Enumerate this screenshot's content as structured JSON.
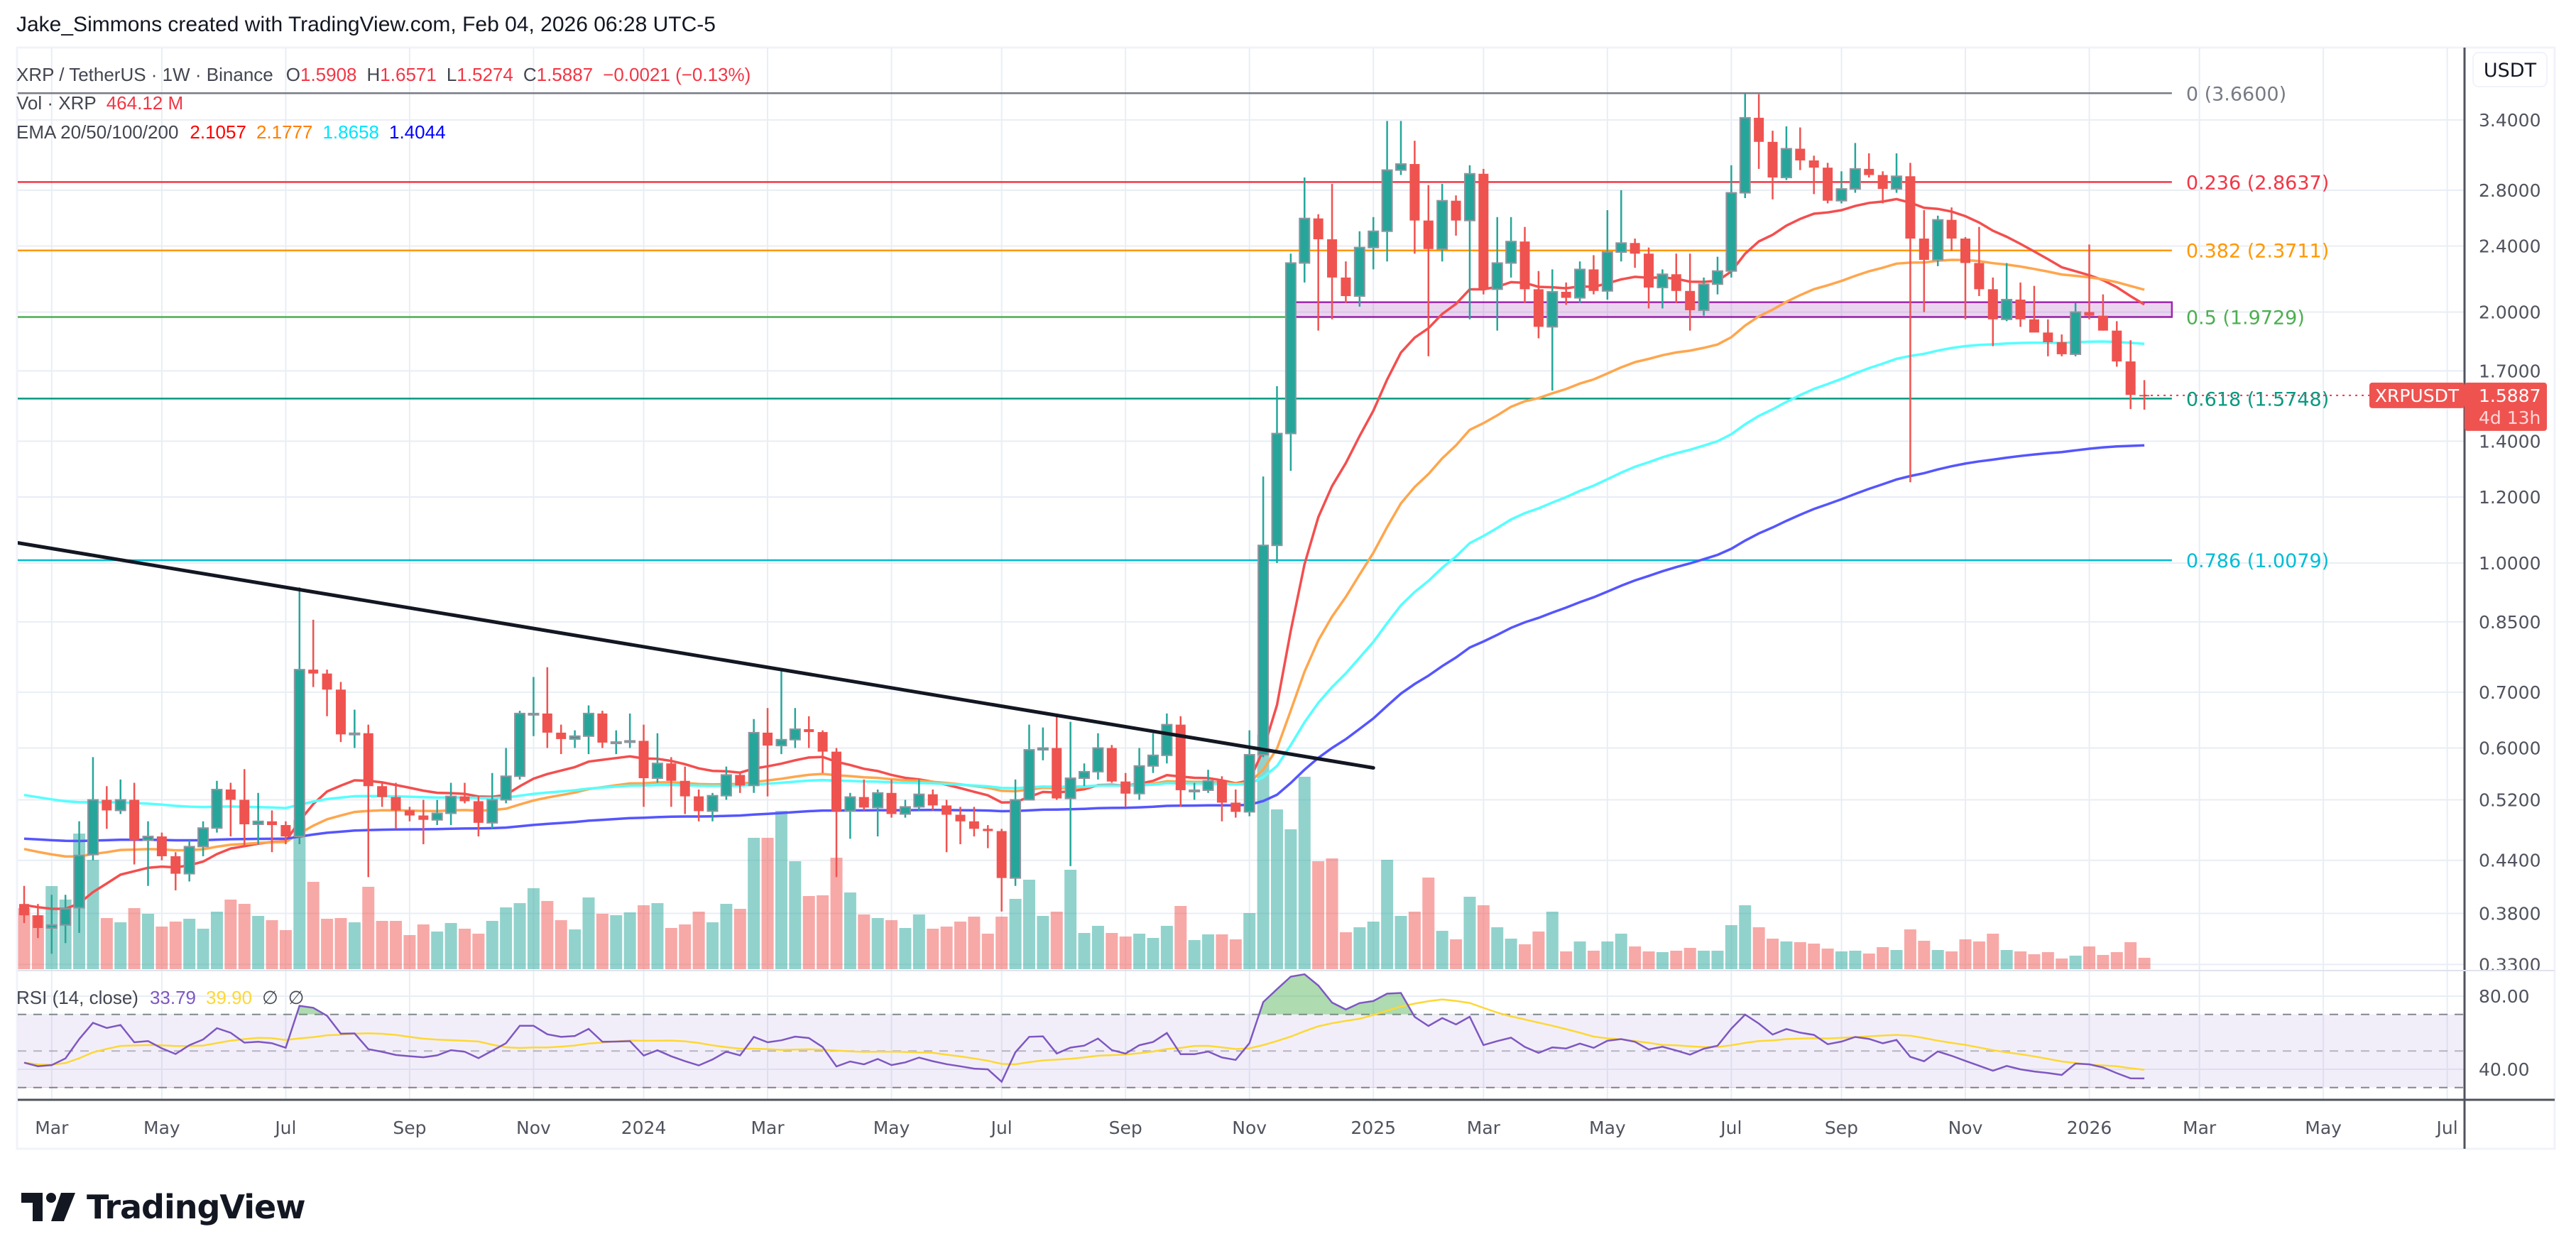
{
  "header": {
    "attribution": "Jake_Simmons created with TradingView.com, Feb 04, 2026 06:28 UTC-5"
  },
  "legend": {
    "symbol": "XRP / TetherUS · 1W · Binance",
    "o_label": "O",
    "o": "1.5908",
    "h_label": "H",
    "h": "1.6571",
    "l_label": "L",
    "l": "1.5274",
    "c_label": "C",
    "c": "1.5887",
    "change": "−0.0021 (−0.13%)"
  },
  "volume_legend": {
    "label": "Vol · XRP",
    "value": "464.12 M"
  },
  "ema_legend": {
    "label": "EMA 20/50/100/200",
    "values": [
      "2.1057",
      "2.1777",
      "1.8658",
      "1.4044"
    ]
  },
  "rsi_legend": {
    "label": "RSI (14, close)",
    "rsi": "33.79",
    "ma": "39.90",
    "na1": "∅",
    "na2": "∅"
  },
  "price_axis": {
    "currency": "USDT",
    "ticks": [
      {
        "label": "3.4000",
        "value": 3.4
      },
      {
        "label": "2.8000",
        "value": 2.8
      },
      {
        "label": "2.4000",
        "value": 2.4
      },
      {
        "label": "2.0000",
        "value": 2.0
      },
      {
        "label": "1.7000",
        "value": 1.7
      },
      {
        "label": "1.4000",
        "value": 1.4
      },
      {
        "label": "1.2000",
        "value": 1.2
      },
      {
        "label": "1.0000",
        "value": 1.0
      },
      {
        "label": "0.8500",
        "value": 0.85
      },
      {
        "label": "0.7000",
        "value": 0.7
      },
      {
        "label": "0.6000",
        "value": 0.6
      },
      {
        "label": "0.5200",
        "value": 0.52
      },
      {
        "label": "0.4400",
        "value": 0.44
      },
      {
        "label": "0.3800",
        "value": 0.38
      },
      {
        "label": "0.3300",
        "value": 0.33
      }
    ]
  },
  "rsi_axis": {
    "ticks": [
      {
        "label": "80.00",
        "value": 80
      },
      {
        "label": "40.00",
        "value": 40
      }
    ]
  },
  "time_axis": {
    "labels": [
      {
        "label": "Mar",
        "month": "2023-03"
      },
      {
        "label": "May",
        "month": "2023-05"
      },
      {
        "label": "Jul",
        "month": "2023-07"
      },
      {
        "label": "Sep",
        "month": "2023-09"
      },
      {
        "label": "Nov",
        "month": "2023-11"
      },
      {
        "label": "2024",
        "month": "2024-01"
      },
      {
        "label": "Mar",
        "month": "2024-03"
      },
      {
        "label": "May",
        "month": "2024-05"
      },
      {
        "label": "Jul",
        "month": "2024-07"
      },
      {
        "label": "Sep",
        "month": "2024-09"
      },
      {
        "label": "Nov",
        "month": "2024-11"
      },
      {
        "label": "2025",
        "month": "2025-01"
      },
      {
        "label": "Mar",
        "month": "2025-03"
      },
      {
        "label": "May",
        "month": "2025-05"
      },
      {
        "label": "Jul",
        "month": "2025-07"
      },
      {
        "label": "Sep",
        "month": "2025-09"
      },
      {
        "label": "Nov",
        "month": "2025-11"
      },
      {
        "label": "2026",
        "month": "2026-01"
      },
      {
        "label": "Mar",
        "month": "2026-03"
      },
      {
        "label": "May",
        "month": "2026-05"
      },
      {
        "label": "Jul",
        "month": "2026-07"
      }
    ]
  },
  "price_tag": {
    "symbol": "XRPUSDT",
    "price": "1.5887",
    "countdown": "4d 13h"
  },
  "brand": "TradingView",
  "colors": {
    "up": "#26a69a",
    "down": "#ef5350",
    "volume_up": "rgba(38,166,154,0.5)",
    "volume_down": "rgba(239,83,80,0.5)",
    "ema20": "#f44e4e",
    "ema50": "#ffa64d",
    "ema100": "#55ffff",
    "ema200": "#5555ff",
    "ema20_legend": "#ff0000",
    "ema50_legend": "#ff8000",
    "ema100_legend": "#00ffff",
    "ema200_legend": "#0000ff",
    "rsi": "#7e57c2",
    "rsi_ma": "#fdd835",
    "trendline": "#131722",
    "zone_fill": "rgba(156,39,176,0.2)",
    "zone_border": "#9c27b0",
    "grid": "#e8eef5"
  },
  "chart_data": {
    "type": "candlestick",
    "symbol": "XRPUSDT",
    "interval": "1W",
    "start_week": "2023-02-20",
    "y_scale": "log",
    "ylim": [
      0.32,
      3.75
    ],
    "x_range": [
      "2023-02-20",
      "2026-07-13"
    ],
    "grid": true,
    "candle_fields": [
      "open",
      "high",
      "low",
      "close",
      "volume_millions"
    ],
    "candles": [
      [
        0.39,
        0.41,
        0.37,
        0.378,
        2494
      ],
      [
        0.378,
        0.39,
        0.355,
        0.365,
        2204
      ],
      [
        0.365,
        0.4,
        0.34,
        0.368,
        3393
      ],
      [
        0.368,
        0.4,
        0.35,
        0.385,
        2842
      ],
      [
        0.386,
        0.49,
        0.36,
        0.446,
        5539
      ],
      [
        0.447,
        0.585,
        0.44,
        0.52,
        4466
      ],
      [
        0.52,
        0.54,
        0.48,
        0.505,
        2088
      ],
      [
        0.505,
        0.55,
        0.5,
        0.52,
        1914
      ],
      [
        0.52,
        0.545,
        0.435,
        0.465,
        2494
      ],
      [
        0.465,
        0.49,
        0.41,
        0.47,
        2262
      ],
      [
        0.47,
        0.475,
        0.44,
        0.445,
        1740
      ],
      [
        0.445,
        0.45,
        0.405,
        0.424,
        1943
      ],
      [
        0.424,
        0.465,
        0.415,
        0.457,
        2059
      ],
      [
        0.457,
        0.49,
        0.445,
        0.481,
        1653
      ],
      [
        0.481,
        0.548,
        0.475,
        0.535,
        2349
      ],
      [
        0.535,
        0.545,
        0.47,
        0.52,
        2842
      ],
      [
        0.52,
        0.566,
        0.456,
        0.486,
        2668
      ],
      [
        0.486,
        0.53,
        0.46,
        0.49,
        2175
      ],
      [
        0.49,
        0.505,
        0.45,
        0.485,
        2001
      ],
      [
        0.485,
        0.49,
        0.46,
        0.47,
        1595
      ],
      [
        0.47,
        0.935,
        0.46,
        0.745,
        6090
      ],
      [
        0.745,
        0.855,
        0.71,
        0.737,
        3567
      ],
      [
        0.737,
        0.745,
        0.655,
        0.705,
        2059
      ],
      [
        0.705,
        0.72,
        0.61,
        0.623,
        2088
      ],
      [
        0.623,
        0.667,
        0.6,
        0.625,
        1914
      ],
      [
        0.625,
        0.64,
        0.42,
        0.54,
        3364
      ],
      [
        0.54,
        0.545,
        0.51,
        0.524,
        1972
      ],
      [
        0.524,
        0.545,
        0.48,
        0.505,
        1972
      ],
      [
        0.505,
        0.51,
        0.49,
        0.498,
        1392
      ],
      [
        0.498,
        0.52,
        0.46,
        0.492,
        1827
      ],
      [
        0.492,
        0.52,
        0.485,
        0.501,
        1537
      ],
      [
        0.501,
        0.545,
        0.485,
        0.525,
        1885
      ],
      [
        0.525,
        0.545,
        0.515,
        0.518,
        1653
      ],
      [
        0.518,
        0.525,
        0.47,
        0.488,
        1450
      ],
      [
        0.488,
        0.56,
        0.48,
        0.52,
        1972
      ],
      [
        0.52,
        0.6,
        0.515,
        0.555,
        2523
      ],
      [
        0.555,
        0.665,
        0.55,
        0.66,
        2697
      ],
      [
        0.66,
        0.73,
        0.62,
        0.66,
        3306
      ],
      [
        0.66,
        0.75,
        0.6,
        0.626,
        2784
      ],
      [
        0.626,
        0.64,
        0.59,
        0.615,
        2001
      ],
      [
        0.615,
        0.63,
        0.6,
        0.62,
        1624
      ],
      [
        0.62,
        0.675,
        0.59,
        0.66,
        2929
      ],
      [
        0.66,
        0.665,
        0.6,
        0.609,
        2262
      ],
      [
        0.609,
        0.63,
        0.59,
        0.61,
        2204
      ],
      [
        0.61,
        0.66,
        0.6,
        0.612,
        2320
      ],
      [
        0.612,
        0.64,
        0.51,
        0.552,
        2610
      ],
      [
        0.552,
        0.625,
        0.545,
        0.575,
        2697
      ],
      [
        0.575,
        0.585,
        0.51,
        0.548,
        1682
      ],
      [
        0.548,
        0.57,
        0.5,
        0.525,
        1827
      ],
      [
        0.525,
        0.535,
        0.49,
        0.504,
        2349
      ],
      [
        0.504,
        0.53,
        0.49,
        0.526,
        1914
      ],
      [
        0.526,
        0.57,
        0.52,
        0.557,
        2668
      ],
      [
        0.557,
        0.56,
        0.53,
        0.541,
        2465
      ],
      [
        0.541,
        0.65,
        0.53,
        0.626,
        5365
      ],
      [
        0.626,
        0.67,
        0.525,
        0.604,
        5365
      ],
      [
        0.604,
        0.744,
        0.59,
        0.614,
        6467
      ],
      [
        0.614,
        0.67,
        0.6,
        0.632,
        4408
      ],
      [
        0.632,
        0.655,
        0.6,
        0.627,
        2987
      ],
      [
        0.627,
        0.63,
        0.56,
        0.594,
        3016
      ],
      [
        0.594,
        0.6,
        0.42,
        0.504,
        4553
      ],
      [
        0.504,
        0.53,
        0.467,
        0.524,
        3132
      ],
      [
        0.524,
        0.55,
        0.505,
        0.509,
        2233
      ],
      [
        0.509,
        0.535,
        0.47,
        0.53,
        2088
      ],
      [
        0.53,
        0.55,
        0.495,
        0.5,
        2001
      ],
      [
        0.5,
        0.52,
        0.495,
        0.51,
        1682
      ],
      [
        0.51,
        0.55,
        0.505,
        0.528,
        2233
      ],
      [
        0.528,
        0.535,
        0.505,
        0.512,
        1653
      ],
      [
        0.512,
        0.52,
        0.45,
        0.499,
        1740
      ],
      [
        0.499,
        0.51,
        0.46,
        0.49,
        1943
      ],
      [
        0.49,
        0.51,
        0.47,
        0.48,
        2146
      ],
      [
        0.48,
        0.485,
        0.455,
        0.477,
        1450
      ],
      [
        0.477,
        0.48,
        0.382,
        0.419,
        2146
      ],
      [
        0.419,
        0.55,
        0.41,
        0.52,
        2871
      ],
      [
        0.52,
        0.64,
        0.52,
        0.597,
        3654
      ],
      [
        0.597,
        0.635,
        0.58,
        0.6,
        2175
      ],
      [
        0.6,
        0.657,
        0.52,
        0.522,
        2349
      ],
      [
        0.522,
        0.645,
        0.433,
        0.552,
        4060
      ],
      [
        0.552,
        0.575,
        0.54,
        0.562,
        1479
      ],
      [
        0.562,
        0.625,
        0.55,
        0.6,
        1769
      ],
      [
        0.6,
        0.605,
        0.545,
        0.547,
        1479
      ],
      [
        0.547,
        0.56,
        0.51,
        0.529,
        1334
      ],
      [
        0.529,
        0.6,
        0.52,
        0.571,
        1450
      ],
      [
        0.571,
        0.625,
        0.56,
        0.588,
        1276
      ],
      [
        0.588,
        0.66,
        0.575,
        0.64,
        1769
      ],
      [
        0.64,
        0.655,
        0.51,
        0.534,
        2581
      ],
      [
        0.534,
        0.545,
        0.52,
        0.534,
        1189
      ],
      [
        0.534,
        0.565,
        0.53,
        0.548,
        1421
      ],
      [
        0.548,
        0.555,
        0.49,
        0.516,
        1421
      ],
      [
        0.516,
        0.535,
        0.495,
        0.503,
        1218
      ],
      [
        0.503,
        0.63,
        0.497,
        0.589,
        2291
      ],
      [
        0.589,
        1.27,
        0.585,
        1.05,
        9570
      ],
      [
        1.05,
        1.63,
        1.0,
        1.43,
        6525
      ],
      [
        1.43,
        2.35,
        1.29,
        2.29,
        5713
      ],
      [
        2.29,
        2.9,
        2.17,
        2.59,
        7859
      ],
      [
        2.59,
        2.62,
        1.9,
        2.445,
        4408
      ],
      [
        2.445,
        2.85,
        1.96,
        2.2,
        4524
      ],
      [
        2.2,
        2.3,
        2.05,
        2.09,
        1508
      ],
      [
        2.09,
        2.5,
        2.03,
        2.39,
        1711
      ],
      [
        2.39,
        2.6,
        2.25,
        2.5,
        1943
      ],
      [
        2.5,
        3.39,
        2.3,
        2.96,
        4466
      ],
      [
        2.96,
        3.39,
        2.92,
        3.01,
        2175
      ],
      [
        3.01,
        3.21,
        2.35,
        2.575,
        2349
      ],
      [
        2.575,
        2.84,
        1.77,
        2.38,
        3741
      ],
      [
        2.38,
        2.85,
        2.3,
        2.72,
        1566
      ],
      [
        2.72,
        2.76,
        2.47,
        2.575,
        1218
      ],
      [
        2.575,
        3.0,
        1.96,
        2.93,
        2958
      ],
      [
        2.93,
        2.97,
        2.1,
        2.13,
        2610
      ],
      [
        2.13,
        2.6,
        1.9,
        2.29,
        1711
      ],
      [
        2.29,
        2.6,
        2.2,
        2.43,
        1247
      ],
      [
        2.43,
        2.53,
        2.05,
        2.13,
        1015
      ],
      [
        2.13,
        2.24,
        1.86,
        1.92,
        1537
      ],
      [
        1.92,
        2.25,
        1.61,
        2.115,
        2349
      ],
      [
        2.115,
        2.17,
        2.04,
        2.08,
        725
      ],
      [
        2.08,
        2.3,
        2.05,
        2.25,
        1131
      ],
      [
        2.25,
        2.34,
        2.1,
        2.12,
        754
      ],
      [
        2.12,
        2.65,
        2.07,
        2.36,
        1131
      ],
      [
        2.36,
        2.8,
        2.3,
        2.42,
        1450
      ],
      [
        2.42,
        2.45,
        2.26,
        2.35,
        928
      ],
      [
        2.35,
        2.39,
        2.02,
        2.14,
        725
      ],
      [
        2.14,
        2.25,
        2.02,
        2.22,
        696
      ],
      [
        2.22,
        2.35,
        2.05,
        2.12,
        754
      ],
      [
        2.12,
        2.35,
        1.9,
        2.01,
        870
      ],
      [
        2.01,
        2.2,
        1.98,
        2.16,
        754
      ],
      [
        2.16,
        2.33,
        2.1,
        2.24,
        754
      ],
      [
        2.24,
        3.0,
        2.2,
        2.78,
        1798
      ],
      [
        2.78,
        3.66,
        2.74,
        3.42,
        2610
      ],
      [
        3.42,
        3.65,
        2.97,
        3.2,
        1711
      ],
      [
        3.2,
        3.3,
        2.73,
        2.9,
        1247
      ],
      [
        2.9,
        3.34,
        2.88,
        3.14,
        1131
      ],
      [
        3.14,
        3.33,
        2.96,
        3.04,
        1102
      ],
      [
        3.04,
        3.08,
        2.77,
        2.98,
        1044
      ],
      [
        2.98,
        3.02,
        2.7,
        2.72,
        841
      ],
      [
        2.72,
        2.95,
        2.7,
        2.81,
        725
      ],
      [
        2.81,
        3.19,
        2.78,
        2.97,
        754
      ],
      [
        2.97,
        3.1,
        2.9,
        2.92,
        638
      ],
      [
        2.92,
        2.95,
        2.7,
        2.81,
        899
      ],
      [
        2.81,
        3.1,
        2.78,
        2.91,
        783
      ],
      [
        2.91,
        3.02,
        1.25,
        2.45,
        1624
      ],
      [
        2.45,
        2.65,
        2.0,
        2.31,
        1160
      ],
      [
        2.31,
        2.61,
        2.27,
        2.58,
        783
      ],
      [
        2.58,
        2.67,
        2.37,
        2.45,
        725
      ],
      [
        2.45,
        2.46,
        1.96,
        2.29,
        1218
      ],
      [
        2.29,
        2.53,
        2.09,
        2.13,
        1131
      ],
      [
        2.13,
        2.2,
        1.82,
        1.96,
        1450
      ],
      [
        1.96,
        2.29,
        1.95,
        2.07,
        783
      ],
      [
        2.07,
        2.17,
        1.92,
        1.96,
        725
      ],
      [
        1.96,
        2.15,
        1.9,
        1.89,
        609
      ],
      [
        1.89,
        1.96,
        1.77,
        1.84,
        696
      ],
      [
        1.84,
        1.88,
        1.77,
        1.78,
        435
      ],
      [
        1.78,
        2.05,
        1.77,
        2.0,
        551
      ],
      [
        2.0,
        2.41,
        1.96,
        1.98,
        928
      ],
      [
        1.98,
        2.1,
        1.9,
        1.9,
        580
      ],
      [
        1.9,
        1.95,
        1.72,
        1.745,
        696
      ],
      [
        1.745,
        1.85,
        1.53,
        1.5908,
        1102
      ],
      [
        1.5908,
        1.6571,
        1.5274,
        1.5887,
        464.12
      ]
    ],
    "indicators": {
      "ema_periods": [
        20,
        50,
        100,
        200
      ],
      "ema_last": [
        2.1057,
        2.1777,
        1.8658,
        1.4044
      ],
      "rsi": {
        "period": 14,
        "source": "close",
        "last": 33.79,
        "ma_last": 39.9,
        "upper_band": 70,
        "middle_band": 50,
        "lower_band": 30
      }
    },
    "fibonacci": {
      "end_date": "2026-02-16",
      "levels": [
        {
          "ratio": "0",
          "price": 3.66,
          "label": "0 (3.6600)",
          "color": "#787b86"
        },
        {
          "ratio": "0.236",
          "price": 2.8637,
          "label": "0.236 (2.8637)",
          "color": "#f23645"
        },
        {
          "ratio": "0.382",
          "price": 2.3711,
          "label": "0.382 (2.3711)",
          "color": "#ff9800"
        },
        {
          "ratio": "0.5",
          "price": 1.9729,
          "label": "0.5 (1.9729)",
          "color": "#4caf50"
        },
        {
          "ratio": "0.618",
          "price": 1.5748,
          "label": "0.618 (1.5748)",
          "color": "#089981"
        },
        {
          "ratio": "0.786",
          "price": 1.0079,
          "label": "0.786 (1.0079)",
          "color": "#00bcd4"
        }
      ]
    },
    "support_zone": {
      "start_date": "2024-11-25",
      "end_date": "2026-02-16",
      "top": 2.055,
      "bottom": 1.973
    },
    "trendline": {
      "start": {
        "date": "2023-02-16",
        "price": 1.058
      },
      "end": {
        "date": "2025-01-06",
        "price": 0.568
      }
    },
    "last_price": 1.5887
  }
}
